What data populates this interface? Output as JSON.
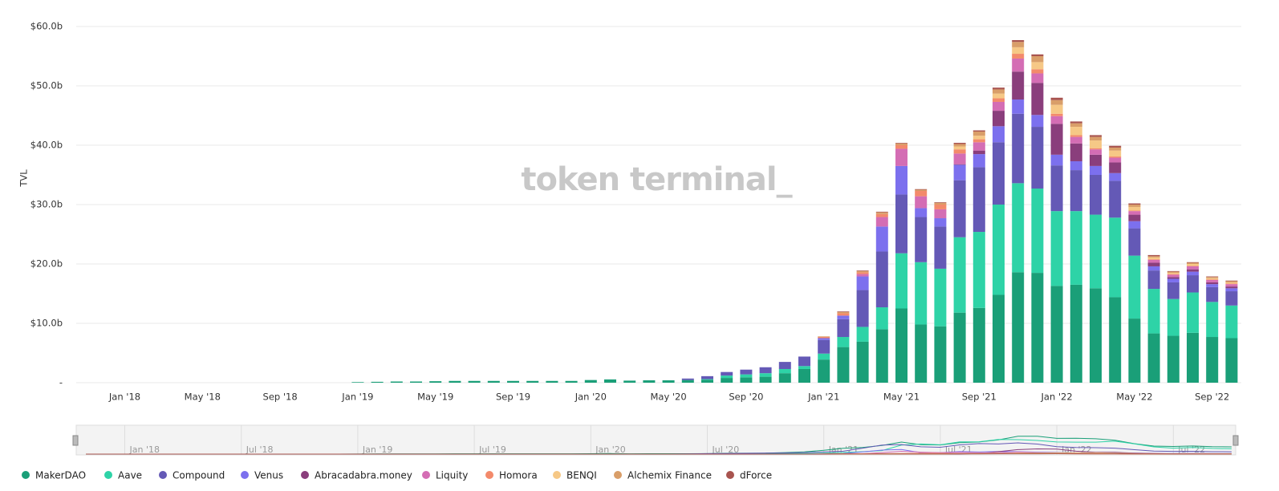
{
  "chart_data": {
    "type": "bar",
    "stacked": true,
    "ylabel": "TVL",
    "watermark": "token terminal_",
    "ylim": [
      0,
      60
    ],
    "yticks": [
      {
        "value": 0,
        "label": "-"
      },
      {
        "value": 10,
        "label": "$10.0b"
      },
      {
        "value": 20,
        "label": "$20.0b"
      },
      {
        "value": 30,
        "label": "$30.0b"
      },
      {
        "value": 40,
        "label": "$40.0b"
      },
      {
        "value": 50,
        "label": "$50.0b"
      },
      {
        "value": 60,
        "label": "$60.0b"
      }
    ],
    "grid": true,
    "categories": [
      null,
      null,
      "Jan '18",
      null,
      null,
      null,
      "May '18",
      null,
      null,
      null,
      "Sep '18",
      null,
      null,
      null,
      "Jan '19",
      null,
      null,
      null,
      "May '19",
      null,
      null,
      null,
      "Sep '19",
      null,
      null,
      null,
      "Jan '20",
      null,
      null,
      null,
      "May '20",
      null,
      null,
      null,
      "Sep '20",
      null,
      null,
      null,
      "Jan '21",
      null,
      null,
      null,
      "May '21",
      null,
      null,
      null,
      "Sep '21",
      null,
      null,
      null,
      "Jan '22",
      null,
      null,
      null,
      "May '22",
      null,
      null,
      null,
      "Sep '22",
      null
    ],
    "series": [
      {
        "name": "MakerDAO",
        "color": "#1a9f78",
        "values": [
          0,
          0,
          0,
          0,
          0,
          0,
          0,
          0,
          0,
          0,
          0,
          0,
          0,
          0,
          0.1,
          0.15,
          0.2,
          0.2,
          0.25,
          0.3,
          0.3,
          0.3,
          0.3,
          0.3,
          0.3,
          0.3,
          0.45,
          0.55,
          0.35,
          0.4,
          0.4,
          0.45,
          0.5,
          0.8,
          0.9,
          1.0,
          1.6,
          2.3,
          3.9,
          6.0,
          6.9,
          9.0,
          12.5,
          9.8,
          9.5,
          11.8,
          12.6,
          14.8,
          18.6,
          18.5,
          16.3,
          16.5,
          15.9,
          14.4,
          10.8,
          8.3,
          7.9,
          8.4,
          7.7,
          7.5
        ]
      },
      {
        "name": "Aave",
        "color": "#2ed3a7",
        "values": [
          0,
          0,
          0,
          0,
          0,
          0,
          0,
          0,
          0,
          0,
          0,
          0,
          0,
          0,
          0,
          0,
          0,
          0,
          0,
          0,
          0,
          0,
          0,
          0,
          0,
          0,
          0,
          0,
          0,
          0,
          0,
          0,
          0.1,
          0.4,
          0.5,
          0.6,
          0.7,
          0.5,
          1.0,
          1.7,
          2.5,
          3.7,
          9.3,
          10.5,
          9.7,
          12.7,
          12.8,
          15.2,
          15.0,
          14.2,
          12.6,
          12.4,
          12.4,
          13.4,
          10.6,
          7.5,
          6.2,
          6.8,
          5.9,
          5.5
        ]
      },
      {
        "name": "Compound",
        "color": "#6459b6",
        "values": [
          0,
          0,
          0,
          0,
          0,
          0,
          0,
          0,
          0,
          0,
          0,
          0,
          0,
          0,
          0,
          0,
          0,
          0,
          0,
          0,
          0,
          0,
          0,
          0,
          0,
          0,
          0,
          0,
          0,
          0,
          0,
          0.25,
          0.5,
          0.6,
          0.8,
          1.0,
          1.2,
          1.6,
          2.3,
          3.0,
          6.2,
          9.4,
          9.9,
          7.6,
          7.1,
          9.6,
          10.9,
          10.5,
          11.7,
          10.4,
          7.7,
          6.9,
          6.7,
          6.2,
          4.6,
          3.1,
          2.8,
          2.9,
          2.5,
          2.4
        ]
      },
      {
        "name": "Venus",
        "color": "#7c70ee",
        "values": [
          0,
          0,
          0,
          0,
          0,
          0,
          0,
          0,
          0,
          0,
          0,
          0,
          0,
          0,
          0,
          0,
          0,
          0,
          0,
          0,
          0,
          0,
          0,
          0,
          0,
          0,
          0,
          0,
          0,
          0,
          0,
          0,
          0,
          0,
          0,
          0,
          0,
          0,
          0.3,
          0.6,
          2.3,
          4.2,
          4.8,
          1.5,
          1.4,
          2.6,
          2.2,
          2.7,
          2.4,
          2.0,
          1.8,
          1.5,
          1.5,
          1.3,
          1.2,
          0.7,
          0.6,
          0.6,
          0.5,
          0.5
        ]
      },
      {
        "name": "Abracadabra.money",
        "color": "#8a3e7c",
        "values": [
          0,
          0,
          0,
          0,
          0,
          0,
          0,
          0,
          0,
          0,
          0,
          0,
          0,
          0,
          0,
          0,
          0,
          0,
          0,
          0,
          0,
          0,
          0,
          0,
          0,
          0,
          0,
          0,
          0,
          0,
          0,
          0,
          0,
          0,
          0,
          0,
          0,
          0,
          0,
          0,
          0,
          0,
          0,
          0,
          0,
          0.1,
          0.6,
          2.6,
          4.7,
          5.4,
          5.2,
          3.0,
          1.9,
          1.8,
          1.1,
          0.6,
          0.3,
          0.4,
          0.3,
          0.3
        ]
      },
      {
        "name": "Liquity",
        "color": "#d46db4",
        "values": [
          0,
          0,
          0,
          0,
          0,
          0,
          0,
          0,
          0,
          0,
          0,
          0,
          0,
          0,
          0,
          0,
          0,
          0,
          0,
          0,
          0,
          0,
          0,
          0,
          0,
          0,
          0,
          0,
          0,
          0,
          0,
          0,
          0,
          0,
          0,
          0,
          0,
          0,
          0,
          0,
          0.4,
          1.6,
          2.9,
          2.0,
          1.5,
          1.8,
          1.4,
          1.5,
          2.2,
          1.6,
          1.3,
          1.1,
          0.9,
          0.8,
          0.6,
          0.5,
          0.4,
          0.5,
          0.4,
          0.4
        ]
      },
      {
        "name": "Homora",
        "color": "#f38a6b",
        "values": [
          0,
          0,
          0,
          0,
          0,
          0,
          0,
          0,
          0,
          0,
          0,
          0,
          0,
          0,
          0,
          0,
          0,
          0,
          0,
          0,
          0,
          0,
          0,
          0,
          0,
          0,
          0,
          0,
          0,
          0,
          0,
          0,
          0,
          0,
          0,
          0,
          0,
          0,
          0.2,
          0.4,
          0.3,
          0.5,
          0.6,
          0.9,
          0.8,
          0.7,
          0.5,
          0.6,
          0.8,
          0.7,
          0.4,
          0.3,
          0.2,
          0.2,
          0.1,
          0.1,
          0.1,
          0.1,
          0.1,
          0.1
        ]
      },
      {
        "name": "BENQI",
        "color": "#f6c886",
        "values": [
          0,
          0,
          0,
          0,
          0,
          0,
          0,
          0,
          0,
          0,
          0,
          0,
          0,
          0,
          0,
          0,
          0,
          0,
          0,
          0,
          0,
          0,
          0,
          0,
          0,
          0,
          0,
          0,
          0,
          0,
          0,
          0,
          0,
          0,
          0,
          0,
          0,
          0,
          0,
          0,
          0,
          0,
          0,
          0,
          0,
          0.5,
          0.6,
          0.8,
          1.1,
          1.2,
          1.5,
          1.4,
          1.3,
          1.0,
          0.6,
          0.3,
          0.2,
          0.3,
          0.2,
          0.2
        ]
      },
      {
        "name": "Alchemix Finance",
        "color": "#d99e69",
        "values": [
          0,
          0,
          0,
          0,
          0,
          0,
          0,
          0,
          0,
          0,
          0,
          0,
          0,
          0,
          0,
          0,
          0,
          0,
          0,
          0,
          0,
          0,
          0,
          0,
          0,
          0,
          0,
          0,
          0,
          0,
          0,
          0,
          0,
          0,
          0,
          0,
          0,
          0,
          0.1,
          0.2,
          0.2,
          0.3,
          0.3,
          0.2,
          0.3,
          0.4,
          0.7,
          0.7,
          0.9,
          1.0,
          0.8,
          0.6,
          0.6,
          0.5,
          0.4,
          0.2,
          0.2,
          0.2,
          0.2,
          0.2
        ]
      },
      {
        "name": "dForce",
        "color": "#a8544f",
        "values": [
          0,
          0,
          0,
          0,
          0,
          0,
          0,
          0,
          0,
          0,
          0,
          0,
          0,
          0,
          0,
          0,
          0,
          0,
          0,
          0,
          0,
          0,
          0,
          0,
          0,
          0,
          0,
          0,
          0,
          0,
          0,
          0,
          0,
          0,
          0,
          0,
          0,
          0,
          0,
          0.1,
          0.1,
          0.1,
          0.1,
          0.1,
          0.1,
          0.2,
          0.2,
          0.3,
          0.3,
          0.3,
          0.4,
          0.3,
          0.3,
          0.3,
          0.2,
          0.2,
          0.1,
          0.1,
          0.1,
          0.1
        ]
      }
    ],
    "navigator": {
      "labels": [
        "Jan '18",
        "Jul '18",
        "Jan '19",
        "Jul '19",
        "Jan '20",
        "Jul '20",
        "Jan '21",
        "Jul '21",
        "Jan '22",
        "Jul '22"
      ]
    }
  }
}
